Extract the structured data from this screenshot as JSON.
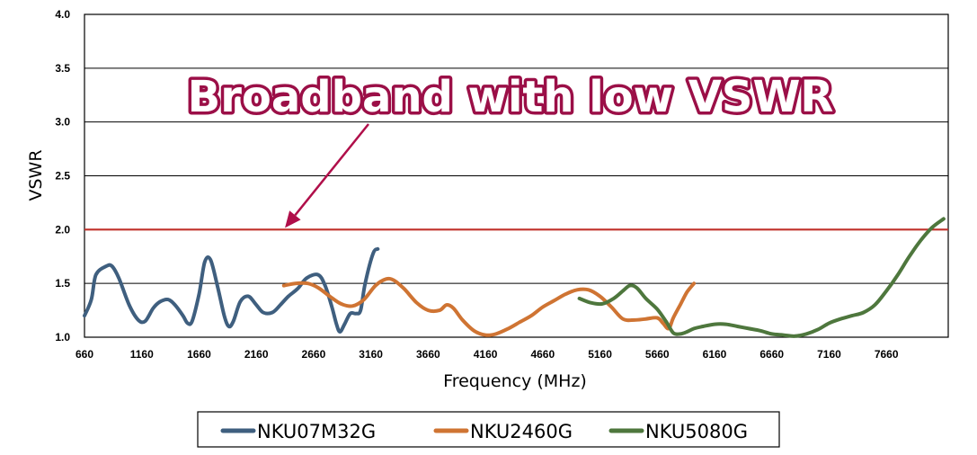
{
  "chart_data": {
    "type": "line",
    "xlabel": "Frequency (MHz)",
    "ylabel": "VSWR",
    "xlim": [
      660,
      8200
    ],
    "ylim": [
      1.0,
      4.0
    ],
    "x_ticks": [
      "660",
      "1160",
      "1660",
      "2160",
      "2660",
      "3160",
      "3660",
      "4160",
      "4660",
      "5160",
      "5660",
      "6160",
      "6660",
      "7160",
      "7660"
    ],
    "y_ticks": [
      "1.0",
      "1.5",
      "2.0",
      "2.5",
      "3.0",
      "3.5",
      "4.0"
    ],
    "grid": "horizontal",
    "legend_position": "bottom",
    "reference_line": {
      "y": 2.0,
      "color": "#c0302a"
    },
    "annotation": {
      "text": "Broadband with low VSWR",
      "arrow_to": [
        2410,
        2.0
      ]
    },
    "series": [
      {
        "name": "NKU07M32G",
        "color": "#3f5f7f",
        "points": [
          [
            660,
            1.2
          ],
          [
            720,
            1.35
          ],
          [
            760,
            1.58
          ],
          [
            850,
            1.66
          ],
          [
            900,
            1.66
          ],
          [
            960,
            1.55
          ],
          [
            1050,
            1.3
          ],
          [
            1130,
            1.16
          ],
          [
            1190,
            1.15
          ],
          [
            1260,
            1.27
          ],
          [
            1320,
            1.33
          ],
          [
            1390,
            1.35
          ],
          [
            1450,
            1.3
          ],
          [
            1520,
            1.2
          ],
          [
            1560,
            1.13
          ],
          [
            1600,
            1.15
          ],
          [
            1660,
            1.4
          ],
          [
            1710,
            1.7
          ],
          [
            1760,
            1.72
          ],
          [
            1820,
            1.48
          ],
          [
            1880,
            1.2
          ],
          [
            1920,
            1.1
          ],
          [
            1960,
            1.15
          ],
          [
            2020,
            1.33
          ],
          [
            2090,
            1.38
          ],
          [
            2160,
            1.3
          ],
          [
            2220,
            1.23
          ],
          [
            2300,
            1.23
          ],
          [
            2370,
            1.3
          ],
          [
            2440,
            1.38
          ],
          [
            2520,
            1.45
          ],
          [
            2600,
            1.55
          ],
          [
            2700,
            1.58
          ],
          [
            2760,
            1.48
          ],
          [
            2820,
            1.28
          ],
          [
            2860,
            1.12
          ],
          [
            2890,
            1.05
          ],
          [
            2930,
            1.12
          ],
          [
            2980,
            1.22
          ],
          [
            3030,
            1.22
          ],
          [
            3070,
            1.25
          ],
          [
            3110,
            1.5
          ],
          [
            3180,
            1.78
          ],
          [
            3220,
            1.82
          ]
        ]
      },
      {
        "name": "NKU2460G",
        "color": "#cf7433",
        "points": [
          [
            2400,
            1.48
          ],
          [
            2500,
            1.5
          ],
          [
            2610,
            1.5
          ],
          [
            2700,
            1.46
          ],
          [
            2800,
            1.38
          ],
          [
            2900,
            1.31
          ],
          [
            3000,
            1.29
          ],
          [
            3100,
            1.35
          ],
          [
            3200,
            1.48
          ],
          [
            3290,
            1.54
          ],
          [
            3360,
            1.53
          ],
          [
            3450,
            1.45
          ],
          [
            3560,
            1.32
          ],
          [
            3660,
            1.25
          ],
          [
            3760,
            1.25
          ],
          [
            3820,
            1.3
          ],
          [
            3880,
            1.27
          ],
          [
            3960,
            1.16
          ],
          [
            4060,
            1.06
          ],
          [
            4160,
            1.02
          ],
          [
            4250,
            1.03
          ],
          [
            4360,
            1.08
          ],
          [
            4460,
            1.14
          ],
          [
            4560,
            1.2
          ],
          [
            4660,
            1.28
          ],
          [
            4760,
            1.34
          ],
          [
            4860,
            1.4
          ],
          [
            4960,
            1.44
          ],
          [
            5060,
            1.44
          ],
          [
            5160,
            1.38
          ],
          [
            5260,
            1.28
          ],
          [
            5360,
            1.17
          ],
          [
            5460,
            1.16
          ],
          [
            5560,
            1.17
          ],
          [
            5660,
            1.18
          ],
          [
            5710,
            1.13
          ],
          [
            5760,
            1.08
          ],
          [
            5800,
            1.18
          ],
          [
            5860,
            1.3
          ],
          [
            5920,
            1.42
          ],
          [
            5980,
            1.5
          ]
        ]
      },
      {
        "name": "NKU5080G",
        "color": "#4e773d",
        "points": [
          [
            4980,
            1.36
          ],
          [
            5080,
            1.32
          ],
          [
            5180,
            1.31
          ],
          [
            5280,
            1.36
          ],
          [
            5360,
            1.43
          ],
          [
            5420,
            1.48
          ],
          [
            5480,
            1.46
          ],
          [
            5560,
            1.36
          ],
          [
            5660,
            1.26
          ],
          [
            5740,
            1.14
          ],
          [
            5800,
            1.04
          ],
          [
            5860,
            1.03
          ],
          [
            5920,
            1.05
          ],
          [
            5980,
            1.08
          ],
          [
            6060,
            1.1
          ],
          [
            6160,
            1.12
          ],
          [
            6260,
            1.12
          ],
          [
            6360,
            1.1
          ],
          [
            6460,
            1.08
          ],
          [
            6560,
            1.06
          ],
          [
            6660,
            1.03
          ],
          [
            6760,
            1.02
          ],
          [
            6860,
            1.01
          ],
          [
            6960,
            1.03
          ],
          [
            7060,
            1.07
          ],
          [
            7160,
            1.13
          ],
          [
            7260,
            1.17
          ],
          [
            7360,
            1.2
          ],
          [
            7460,
            1.23
          ],
          [
            7560,
            1.3
          ],
          [
            7660,
            1.43
          ],
          [
            7760,
            1.58
          ],
          [
            7860,
            1.75
          ],
          [
            7960,
            1.9
          ],
          [
            8060,
            2.02
          ],
          [
            8160,
            2.1
          ]
        ]
      }
    ]
  }
}
